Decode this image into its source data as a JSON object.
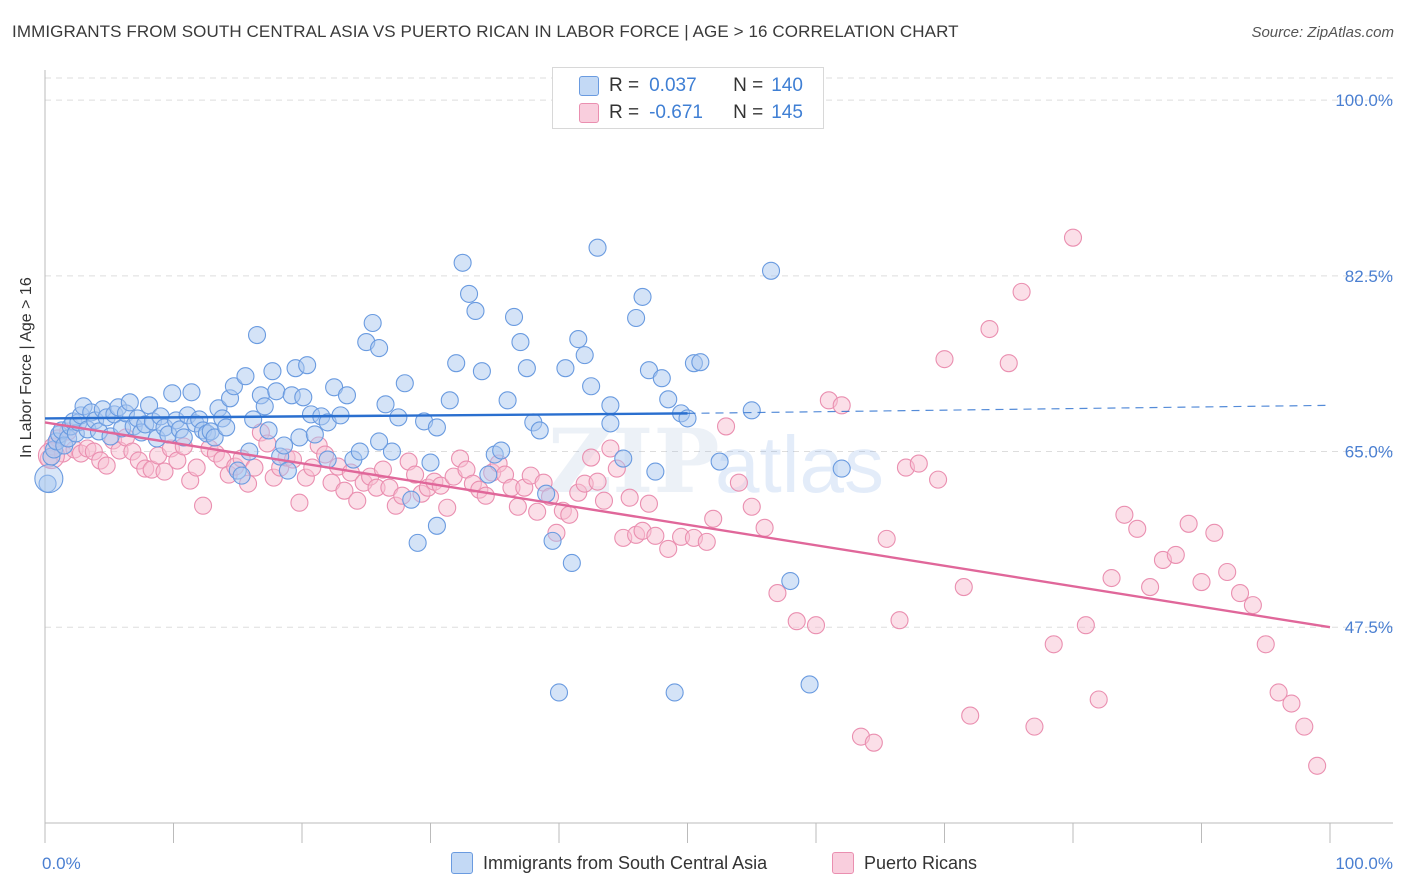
{
  "title": "IMMIGRANTS FROM SOUTH CENTRAL ASIA VS PUERTO RICAN IN LABOR FORCE | AGE > 16 CORRELATION CHART",
  "source": "Source: ZipAtlas.com",
  "watermark": {
    "zip": "ZIP",
    "atlas": "atlas"
  },
  "legend": {
    "rows": [
      {
        "r_label": "R =",
        "r_value": "0.037",
        "n_label": "N =",
        "n_value": "140"
      },
      {
        "r_label": "R =",
        "r_value": "-0.671",
        "n_label": "N =",
        "n_value": "145"
      }
    ]
  },
  "colors": {
    "blue_fill": "#a9c8f0",
    "blue_stroke": "#6a9be0",
    "blue_line": "#2a6fcf",
    "pink_fill": "#f7bfd2",
    "pink_stroke": "#ea8fb0",
    "pink_line": "#e0679a",
    "grid": "#dddddd",
    "tick_text": "#4a7fd1"
  },
  "chart_data": {
    "type": "scatter",
    "title": "IMMIGRANTS FROM SOUTH CENTRAL ASIA VS PUERTO RICAN IN LABOR FORCE | AGE > 16 CORRELATION CHART",
    "xlabel": "",
    "ylabel": "In Labor Force | Age > 16",
    "xlim": [
      0,
      100
    ],
    "ylim": [
      28,
      103
    ],
    "x_tick_labels": [
      "0.0%",
      "100.0%"
    ],
    "y_ticks": [
      47.5,
      65.0,
      82.5,
      100.0
    ],
    "y_tick_labels": [
      "47.5%",
      "65.0%",
      "82.5%",
      "100.0%"
    ],
    "grid": true,
    "legend_position": "top-center",
    "series": [
      {
        "name": "Immigrants from South Central Asia",
        "color": "#a9c8f0",
        "r": 0.037,
        "n": 140,
        "trend": {
          "x": [
            0,
            50
          ],
          "y": [
            68.3,
            68.8
          ],
          "dashed_to": [
            100,
            69.6
          ]
        },
        "points": [
          [
            0.2,
            61.8
          ],
          [
            0.5,
            64.5
          ],
          [
            0.7,
            65.2
          ],
          [
            0.9,
            66.0
          ],
          [
            1.1,
            66.7
          ],
          [
            1.3,
            67.1
          ],
          [
            1.5,
            65.6
          ],
          [
            1.8,
            66.3
          ],
          [
            2.0,
            67.5
          ],
          [
            2.2,
            68.0
          ],
          [
            2.4,
            66.8
          ],
          [
            2.6,
            67.9
          ],
          [
            2.8,
            68.6
          ],
          [
            3.0,
            69.5
          ],
          [
            3.3,
            67.2
          ],
          [
            3.6,
            68.9
          ],
          [
            3.9,
            68.1
          ],
          [
            4.2,
            67.0
          ],
          [
            4.5,
            69.2
          ],
          [
            4.8,
            68.4
          ],
          [
            5.1,
            66.5
          ],
          [
            5.4,
            68.7
          ],
          [
            5.7,
            69.4
          ],
          [
            6.0,
            67.3
          ],
          [
            6.3,
            68.8
          ],
          [
            6.6,
            69.9
          ],
          [
            6.9,
            67.5
          ],
          [
            7.2,
            68.3
          ],
          [
            7.5,
            66.9
          ],
          [
            7.8,
            67.7
          ],
          [
            8.1,
            69.6
          ],
          [
            8.4,
            68.0
          ],
          [
            8.7,
            66.3
          ],
          [
            9.0,
            68.5
          ],
          [
            9.3,
            67.4
          ],
          [
            9.6,
            66.7
          ],
          [
            9.9,
            70.8
          ],
          [
            10.2,
            68.1
          ],
          [
            10.5,
            67.2
          ],
          [
            10.8,
            66.4
          ],
          [
            11.1,
            68.6
          ],
          [
            11.4,
            70.9
          ],
          [
            11.7,
            67.8
          ],
          [
            12.0,
            68.2
          ],
          [
            12.3,
            67.1
          ],
          [
            12.6,
            66.8
          ],
          [
            12.9,
            67.0
          ],
          [
            13.2,
            66.4
          ],
          [
            13.5,
            69.3
          ],
          [
            13.8,
            68.3
          ],
          [
            14.1,
            67.4
          ],
          [
            14.4,
            70.3
          ],
          [
            14.7,
            71.5
          ],
          [
            15.0,
            63.1
          ],
          [
            15.3,
            62.6
          ],
          [
            15.6,
            72.5
          ],
          [
            15.9,
            65.0
          ],
          [
            16.2,
            68.2
          ],
          [
            16.5,
            76.6
          ],
          [
            16.8,
            70.6
          ],
          [
            17.1,
            69.5
          ],
          [
            17.4,
            67.1
          ],
          [
            17.7,
            73.0
          ],
          [
            18.0,
            71.0
          ],
          [
            18.3,
            64.5
          ],
          [
            18.6,
            65.6
          ],
          [
            18.9,
            63.1
          ],
          [
            19.2,
            70.6
          ],
          [
            19.5,
            73.3
          ],
          [
            19.8,
            66.4
          ],
          [
            20.1,
            70.4
          ],
          [
            20.4,
            73.6
          ],
          [
            20.7,
            68.7
          ],
          [
            21.0,
            66.7
          ],
          [
            21.5,
            68.5
          ],
          [
            22.0,
            67.9
          ],
          [
            22.5,
            71.4
          ],
          [
            23.0,
            68.6
          ],
          [
            23.5,
            70.6
          ],
          [
            24.0,
            64.2
          ],
          [
            24.5,
            65.0
          ],
          [
            25.0,
            75.9
          ],
          [
            25.5,
            77.8
          ],
          [
            26.0,
            75.3
          ],
          [
            26.5,
            69.7
          ],
          [
            27.0,
            65.0
          ],
          [
            27.5,
            68.4
          ],
          [
            28.0,
            71.8
          ],
          [
            28.5,
            60.2
          ],
          [
            29.0,
            55.9
          ],
          [
            29.5,
            68.0
          ],
          [
            30.0,
            63.9
          ],
          [
            30.5,
            57.6
          ],
          [
            31.5,
            70.1
          ],
          [
            32.0,
            73.8
          ],
          [
            32.5,
            83.8
          ],
          [
            33.0,
            80.7
          ],
          [
            33.5,
            79.0
          ],
          [
            34.0,
            73.0
          ],
          [
            34.5,
            62.7
          ],
          [
            35.0,
            64.7
          ],
          [
            35.5,
            65.1
          ],
          [
            36.0,
            70.1
          ],
          [
            36.5,
            78.4
          ],
          [
            37.0,
            75.9
          ],
          [
            37.5,
            73.3
          ],
          [
            38.0,
            67.9
          ],
          [
            38.5,
            67.1
          ],
          [
            39.0,
            60.8
          ],
          [
            39.5,
            56.1
          ],
          [
            40.0,
            41.0
          ],
          [
            40.5,
            73.3
          ],
          [
            41.0,
            53.9
          ],
          [
            41.5,
            76.2
          ],
          [
            42.0,
            74.6
          ],
          [
            42.5,
            71.5
          ],
          [
            43.0,
            85.3
          ],
          [
            44.0,
            69.6
          ],
          [
            45.0,
            64.3
          ],
          [
            46.0,
            78.3
          ],
          [
            46.5,
            80.4
          ],
          [
            47.0,
            73.1
          ],
          [
            47.5,
            63.0
          ],
          [
            48.0,
            72.3
          ],
          [
            48.5,
            70.2
          ],
          [
            49.0,
            41.0
          ],
          [
            49.5,
            68.8
          ],
          [
            50.0,
            68.3
          ],
          [
            50.5,
            73.8
          ],
          [
            51.0,
            73.9
          ],
          [
            52.5,
            64.0
          ],
          [
            55.0,
            69.1
          ],
          [
            56.5,
            83.0
          ],
          [
            58.0,
            52.1
          ],
          [
            59.5,
            41.8
          ],
          [
            62.0,
            63.3
          ],
          [
            44.0,
            67.8
          ],
          [
            30.5,
            67.4
          ],
          [
            26.0,
            66.0
          ],
          [
            22.0,
            64.2
          ]
        ]
      },
      {
        "name": "Puerto Ricans",
        "color": "#f7bfd2",
        "r": -0.671,
        "n": 145,
        "trend": {
          "x": [
            0,
            100
          ],
          "y": [
            67.9,
            47.5
          ]
        },
        "points": [
          [
            0.3,
            64.3
          ],
          [
            0.6,
            65.5
          ],
          [
            1.0,
            66.3
          ],
          [
            1.4,
            64.8
          ],
          [
            1.8,
            67.0
          ],
          [
            2.3,
            65.2
          ],
          [
            2.8,
            64.8
          ],
          [
            3.3,
            65.3
          ],
          [
            3.8,
            65.0
          ],
          [
            4.3,
            64.1
          ],
          [
            4.8,
            63.6
          ],
          [
            5.3,
            66.1
          ],
          [
            5.8,
            65.1
          ],
          [
            6.3,
            66.4
          ],
          [
            6.8,
            65.0
          ],
          [
            7.3,
            64.1
          ],
          [
            7.8,
            63.3
          ],
          [
            8.3,
            63.2
          ],
          [
            8.8,
            64.6
          ],
          [
            9.3,
            63.0
          ],
          [
            9.8,
            65.3
          ],
          [
            10.3,
            64.1
          ],
          [
            10.8,
            65.5
          ],
          [
            11.3,
            62.1
          ],
          [
            11.8,
            63.4
          ],
          [
            12.3,
            59.6
          ],
          [
            12.8,
            65.3
          ],
          [
            13.3,
            64.8
          ],
          [
            13.8,
            64.2
          ],
          [
            14.3,
            62.7
          ],
          [
            14.8,
            63.5
          ],
          [
            15.3,
            64.3
          ],
          [
            15.8,
            61.8
          ],
          [
            16.3,
            63.4
          ],
          [
            16.8,
            66.9
          ],
          [
            17.3,
            65.8
          ],
          [
            17.8,
            62.4
          ],
          [
            18.3,
            63.4
          ],
          [
            18.8,
            64.4
          ],
          [
            19.3,
            64.2
          ],
          [
            19.8,
            59.9
          ],
          [
            20.3,
            62.4
          ],
          [
            20.8,
            63.4
          ],
          [
            21.3,
            65.6
          ],
          [
            21.8,
            64.7
          ],
          [
            22.3,
            61.9
          ],
          [
            22.8,
            63.5
          ],
          [
            23.3,
            61.1
          ],
          [
            23.8,
            62.9
          ],
          [
            24.3,
            60.1
          ],
          [
            24.8,
            61.9
          ],
          [
            25.3,
            62.5
          ],
          [
            25.8,
            61.4
          ],
          [
            26.3,
            63.2
          ],
          [
            26.8,
            61.4
          ],
          [
            27.3,
            59.6
          ],
          [
            27.8,
            60.6
          ],
          [
            28.3,
            64.0
          ],
          [
            28.8,
            62.7
          ],
          [
            29.3,
            60.8
          ],
          [
            29.8,
            61.4
          ],
          [
            30.3,
            62.0
          ],
          [
            30.8,
            61.6
          ],
          [
            31.3,
            59.4
          ],
          [
            31.8,
            62.5
          ],
          [
            32.3,
            64.3
          ],
          [
            32.8,
            63.2
          ],
          [
            33.3,
            61.8
          ],
          [
            33.8,
            61.2
          ],
          [
            34.3,
            60.6
          ],
          [
            34.8,
            62.9
          ],
          [
            35.3,
            63.8
          ],
          [
            35.8,
            62.7
          ],
          [
            36.3,
            61.4
          ],
          [
            36.8,
            59.5
          ],
          [
            37.3,
            61.4
          ],
          [
            37.8,
            62.6
          ],
          [
            38.3,
            59.0
          ],
          [
            38.8,
            61.9
          ],
          [
            39.3,
            60.5
          ],
          [
            39.8,
            56.9
          ],
          [
            40.3,
            59.1
          ],
          [
            40.8,
            58.7
          ],
          [
            41.5,
            60.9
          ],
          [
            42.0,
            61.8
          ],
          [
            42.5,
            64.4
          ],
          [
            43.0,
            62.0
          ],
          [
            43.5,
            60.1
          ],
          [
            44.0,
            65.3
          ],
          [
            44.5,
            63.3
          ],
          [
            45.0,
            56.4
          ],
          [
            45.5,
            60.4
          ],
          [
            46.0,
            56.7
          ],
          [
            46.5,
            57.1
          ],
          [
            47.0,
            59.8
          ],
          [
            47.5,
            56.6
          ],
          [
            48.5,
            55.3
          ],
          [
            49.5,
            56.5
          ],
          [
            50.5,
            56.4
          ],
          [
            51.5,
            56.0
          ],
          [
            52.0,
            58.3
          ],
          [
            53.0,
            67.5
          ],
          [
            54.0,
            61.9
          ],
          [
            55.0,
            59.5
          ],
          [
            56.0,
            57.4
          ],
          [
            57.0,
            50.9
          ],
          [
            58.5,
            48.1
          ],
          [
            60.0,
            47.7
          ],
          [
            61.0,
            70.1
          ],
          [
            62.0,
            69.6
          ],
          [
            63.5,
            36.6
          ],
          [
            64.5,
            36.0
          ],
          [
            65.5,
            56.3
          ],
          [
            66.5,
            48.2
          ],
          [
            67.0,
            63.4
          ],
          [
            68.0,
            63.8
          ],
          [
            69.5,
            62.2
          ],
          [
            70.0,
            74.2
          ],
          [
            71.5,
            51.5
          ],
          [
            72.0,
            38.7
          ],
          [
            73.5,
            77.2
          ],
          [
            75.0,
            73.8
          ],
          [
            76.0,
            80.9
          ],
          [
            77.0,
            37.6
          ],
          [
            78.5,
            45.8
          ],
          [
            80.0,
            86.3
          ],
          [
            81.0,
            47.7
          ],
          [
            82.0,
            40.3
          ],
          [
            83.0,
            52.4
          ],
          [
            84.0,
            58.7
          ],
          [
            85.0,
            57.3
          ],
          [
            86.0,
            51.5
          ],
          [
            87.0,
            54.2
          ],
          [
            88.0,
            54.7
          ],
          [
            89.0,
            57.8
          ],
          [
            90.0,
            52.0
          ],
          [
            91.0,
            56.9
          ],
          [
            92.0,
            53.0
          ],
          [
            93.0,
            50.9
          ],
          [
            94.0,
            49.7
          ],
          [
            95.0,
            45.8
          ],
          [
            96.0,
            41.0
          ],
          [
            97.0,
            39.9
          ],
          [
            98.0,
            37.6
          ],
          [
            99.0,
            33.7
          ]
        ]
      }
    ]
  },
  "bottom_legend": {
    "items": [
      {
        "label": "Immigrants from South Central Asia"
      },
      {
        "label": "Puerto Ricans"
      }
    ]
  }
}
